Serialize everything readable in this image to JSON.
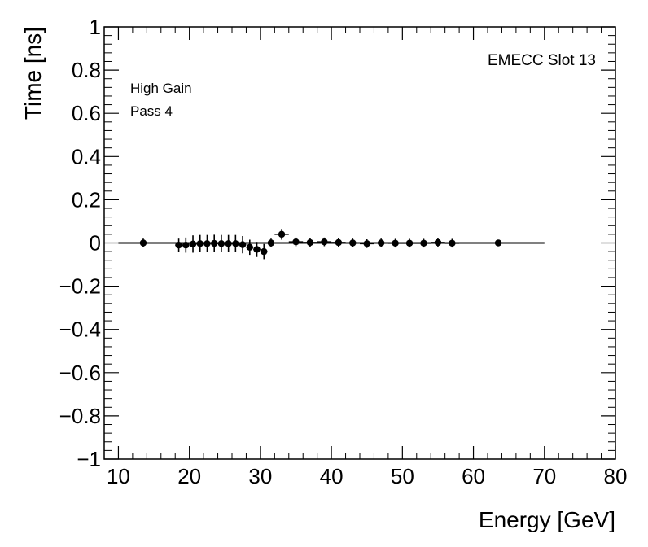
{
  "chart_data": {
    "type": "scatter",
    "title": "",
    "xlabel": "Energy [GeV]",
    "ylabel": "Time [ns]",
    "xlim": [
      8,
      80
    ],
    "ylim": [
      -1,
      1
    ],
    "xticks": [
      10,
      20,
      30,
      40,
      50,
      60,
      70,
      80
    ],
    "xtick_labels": [
      "10",
      "20",
      "30",
      "40",
      "50",
      "60",
      "70",
      "80"
    ],
    "yticks": [
      -1,
      -0.8,
      -0.6,
      -0.4,
      -0.2,
      0,
      0.2,
      0.4,
      0.6,
      0.8,
      1
    ],
    "ytick_labels": [
      "−1",
      "−0.8",
      "−0.6",
      "−0.4",
      "−0.2",
      "0",
      "0.2",
      "0.4",
      "0.6",
      "0.8",
      "1"
    ],
    "grid": false,
    "annotations": {
      "slot": "EMECC Slot 13",
      "gain": "High Gain",
      "pass": "Pass 4"
    },
    "fit_line": {
      "x": [
        10,
        70
      ],
      "y": [
        0,
        0
      ]
    },
    "series": [
      {
        "name": "data",
        "points": [
          {
            "x": 13.5,
            "y": 0.0,
            "xerr": 0.5,
            "yerr": 0.02
          },
          {
            "x": 18.5,
            "y": -0.01,
            "xerr": 0.5,
            "yerr": 0.03
          },
          {
            "x": 19.5,
            "y": -0.01,
            "xerr": 0.5,
            "yerr": 0.035
          },
          {
            "x": 20.5,
            "y": -0.005,
            "xerr": 0.5,
            "yerr": 0.04
          },
          {
            "x": 21.5,
            "y": -0.003,
            "xerr": 0.5,
            "yerr": 0.04
          },
          {
            "x": 22.5,
            "y": -0.003,
            "xerr": 0.5,
            "yerr": 0.04
          },
          {
            "x": 23.5,
            "y": -0.002,
            "xerr": 0.5,
            "yerr": 0.04
          },
          {
            "x": 24.5,
            "y": -0.003,
            "xerr": 0.5,
            "yerr": 0.04
          },
          {
            "x": 25.5,
            "y": -0.003,
            "xerr": 0.5,
            "yerr": 0.04
          },
          {
            "x": 26.5,
            "y": -0.003,
            "xerr": 0.5,
            "yerr": 0.04
          },
          {
            "x": 27.5,
            "y": -0.008,
            "xerr": 0.5,
            "yerr": 0.04
          },
          {
            "x": 28.5,
            "y": -0.02,
            "xerr": 0.5,
            "yerr": 0.035
          },
          {
            "x": 29.5,
            "y": -0.03,
            "xerr": 0.5,
            "yerr": 0.035
          },
          {
            "x": 30.5,
            "y": -0.04,
            "xerr": 0.5,
            "yerr": 0.035
          },
          {
            "x": 31.5,
            "y": 0.0,
            "xerr": 0.5,
            "yerr": 0.02
          },
          {
            "x": 33.0,
            "y": 0.04,
            "xerr": 1.0,
            "yerr": 0.025
          },
          {
            "x": 35.0,
            "y": 0.005,
            "xerr": 1.0,
            "yerr": 0.02
          },
          {
            "x": 37.0,
            "y": 0.002,
            "xerr": 1.0,
            "yerr": 0.02
          },
          {
            "x": 39.0,
            "y": 0.005,
            "xerr": 1.0,
            "yerr": 0.02
          },
          {
            "x": 41.0,
            "y": 0.002,
            "xerr": 1.0,
            "yerr": 0.02
          },
          {
            "x": 43.0,
            "y": 0.0,
            "xerr": 1.0,
            "yerr": 0.02
          },
          {
            "x": 45.0,
            "y": -0.003,
            "xerr": 1.0,
            "yerr": 0.02
          },
          {
            "x": 47.0,
            "y": 0.0,
            "xerr": 1.0,
            "yerr": 0.02
          },
          {
            "x": 49.0,
            "y": -0.001,
            "xerr": 1.0,
            "yerr": 0.02
          },
          {
            "x": 51.0,
            "y": -0.001,
            "xerr": 1.0,
            "yerr": 0.02
          },
          {
            "x": 53.0,
            "y": -0.001,
            "xerr": 1.0,
            "yerr": 0.02
          },
          {
            "x": 55.0,
            "y": 0.002,
            "xerr": 1.0,
            "yerr": 0.02
          },
          {
            "x": 57.0,
            "y": -0.001,
            "xerr": 1.0,
            "yerr": 0.02
          },
          {
            "x": 63.5,
            "y": 0.0,
            "xerr": 0.5,
            "yerr": 0.01
          }
        ]
      }
    ]
  },
  "colors": {
    "axis": "#000000",
    "marker": "#000000",
    "background": "#ffffff"
  }
}
